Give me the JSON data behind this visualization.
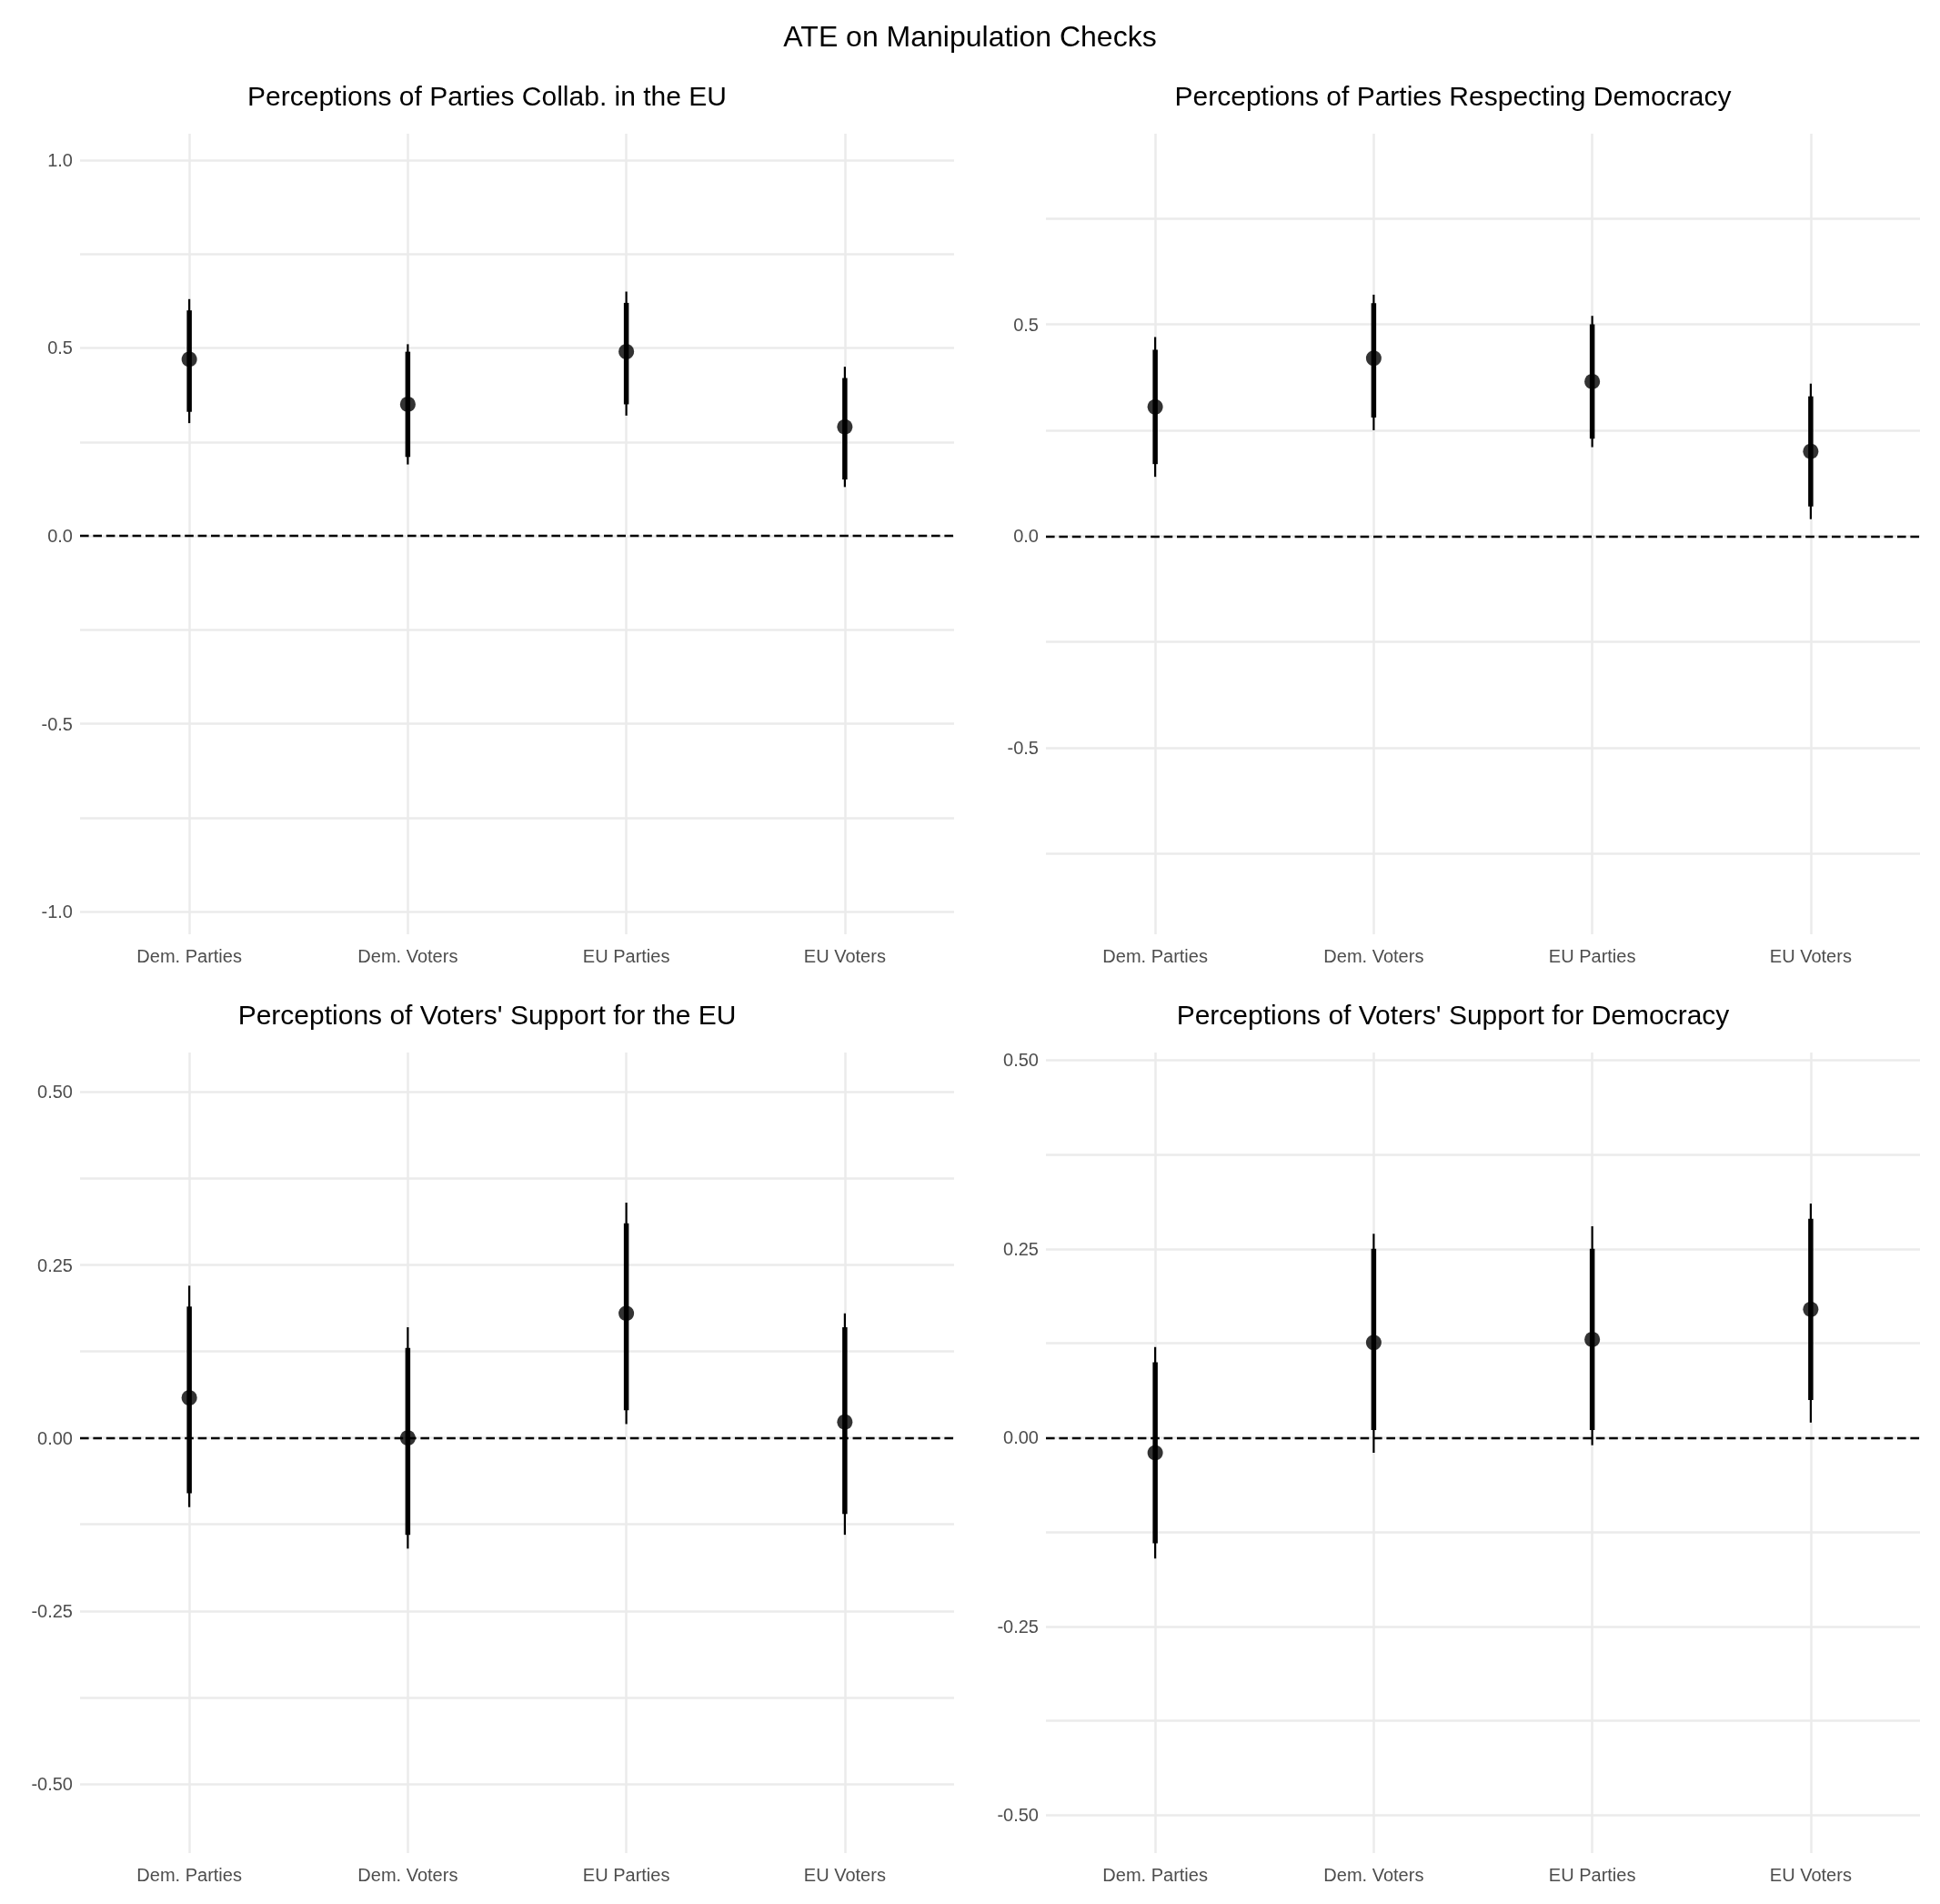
{
  "chart_data": [
    {
      "type": "scatter",
      "title": "Perceptions of Parties Collab. in the EU",
      "annotations": [
        "ATE on Manipulation Checks"
      ],
      "categories": [
        "Dem. Parties",
        "Dem. Voters",
        "EU Parties",
        "EU Voters"
      ],
      "grid": true,
      "marker": "circle",
      "ylim": [
        -1.06,
        1.07
      ],
      "yticks": [
        {
          "value": -1,
          "label": "-1.0"
        },
        {
          "value": -0.75,
          "label": null
        },
        -0.5,
        {
          "value": -0.25,
          "label": null
        },
        {
          "value": 0,
          "label": "0.0"
        },
        {
          "value": 0.25,
          "label": null
        },
        0.5,
        {
          "value": 0.75,
          "label": null
        },
        {
          "value": 1,
          "label": "1.0"
        }
      ],
      "series": [
        {
          "type": "bar",
          "color": "#000000",
          "base": [
            0.33,
            0.21,
            0.35,
            0.15
          ],
          "values": [
            0.27,
            0.28,
            0.27,
            0.27
          ]
        },
        {
          "color": "#000000",
          "values": [
            0.47,
            0.35,
            0.49,
            0.29
          ],
          "errors": [
            [
              0.3,
              0.63
            ],
            [
              0.19,
              0.51
            ],
            [
              0.32,
              0.65
            ],
            [
              0.13,
              0.45
            ]
          ]
        }
      ],
      "ref_lines": [
        {
          "axis": "y",
          "value": 0,
          "line_style": "dashed",
          "color": "#000000"
        }
      ]
    },
    {
      "type": "scatter",
      "title": "Perceptions of Parties Respecting Democracy",
      "categories": [
        "Dem. Parties",
        "Dem. Voters",
        "EU Parties",
        "EU Voters"
      ],
      "grid": true,
      "marker": "circle",
      "ylim": [
        -0.94,
        0.95
      ],
      "yticks": [
        {
          "value": -0.75,
          "label": null
        },
        -0.5,
        {
          "value": -0.25,
          "label": null
        },
        {
          "value": 0,
          "label": "0.0"
        },
        {
          "value": 0.25,
          "label": null
        },
        0.5,
        {
          "value": 0.75,
          "label": null
        }
      ],
      "series": [
        {
          "type": "bar",
          "color": "#000000",
          "base": [
            0.17,
            0.28,
            0.23,
            0.07
          ],
          "values": [
            0.27,
            0.27,
            0.27,
            0.26
          ]
        },
        {
          "color": "#000000",
          "values": [
            0.305,
            0.42,
            0.365,
            0.2
          ],
          "errors": [
            [
              0.14,
              0.47
            ],
            [
              0.25,
              0.57
            ],
            [
              0.21,
              0.52
            ],
            [
              0.04,
              0.36
            ]
          ]
        }
      ],
      "ref_lines": [
        {
          "axis": "y",
          "value": 0,
          "line_style": "dashed",
          "color": "#000000"
        }
      ]
    },
    {
      "type": "scatter",
      "title": "Perceptions of Voters' Support for the EU",
      "categories": [
        "Dem. Parties",
        "Dem. Voters",
        "EU Parties",
        "EU Voters"
      ],
      "grid": true,
      "marker": "circle",
      "ylim": [
        -0.6,
        0.557
      ],
      "yticks": [
        {
          "value": -0.5,
          "label": "-0.50"
        },
        {
          "value": -0.375,
          "label": null
        },
        -0.25,
        {
          "value": -0.125,
          "label": null
        },
        {
          "value": 0,
          "label": "0.00"
        },
        {
          "value": 0.125,
          "label": null
        },
        0.25,
        {
          "value": 0.375,
          "label": null
        },
        {
          "value": 0.5,
          "label": "0.50"
        }
      ],
      "series": [
        {
          "type": "bar",
          "color": "#000000",
          "base": [
            -0.08,
            -0.14,
            0.04,
            -0.11
          ],
          "values": [
            0.27,
            0.27,
            0.27,
            0.27
          ]
        },
        {
          "color": "#000000",
          "values": [
            0.058,
            0.0,
            0.18,
            0.023
          ],
          "errors": [
            [
              -0.1,
              0.22
            ],
            [
              -0.16,
              0.16
            ],
            [
              0.02,
              0.34
            ],
            [
              -0.14,
              0.18
            ]
          ]
        }
      ],
      "ref_lines": [
        {
          "axis": "y",
          "value": 0,
          "line_style": "dashed",
          "color": "#000000"
        }
      ]
    },
    {
      "type": "scatter",
      "title": "Perceptions of Voters' Support for Democracy",
      "categories": [
        "Dem. Parties",
        "Dem. Voters",
        "EU Parties",
        "EU Voters"
      ],
      "grid": true,
      "marker": "circle",
      "ylim": [
        -0.55,
        0.51
      ],
      "yticks": [
        {
          "value": -0.5,
          "label": "-0.50"
        },
        {
          "value": -0.375,
          "label": null
        },
        -0.25,
        {
          "value": -0.125,
          "label": null
        },
        {
          "value": 0,
          "label": "0.00"
        },
        {
          "value": 0.125,
          "label": null
        },
        0.25,
        {
          "value": 0.375,
          "label": null
        },
        {
          "value": 0.5,
          "label": "0.50"
        }
      ],
      "series": [
        {
          "type": "bar",
          "color": "#000000",
          "base": [
            -0.14,
            0.01,
            0.01,
            0.05
          ],
          "values": [
            0.24,
            0.24,
            0.24,
            0.24
          ]
        },
        {
          "color": "#000000",
          "values": [
            -0.02,
            0.126,
            0.13,
            0.17
          ],
          "errors": [
            [
              -0.16,
              0.12
            ],
            [
              -0.02,
              0.27
            ],
            [
              -0.01,
              0.28
            ],
            [
              0.02,
              0.31
            ]
          ]
        }
      ],
      "ref_lines": [
        {
          "axis": "y",
          "value": 0,
          "line_style": "dashed",
          "color": "#000000"
        }
      ]
    }
  ]
}
